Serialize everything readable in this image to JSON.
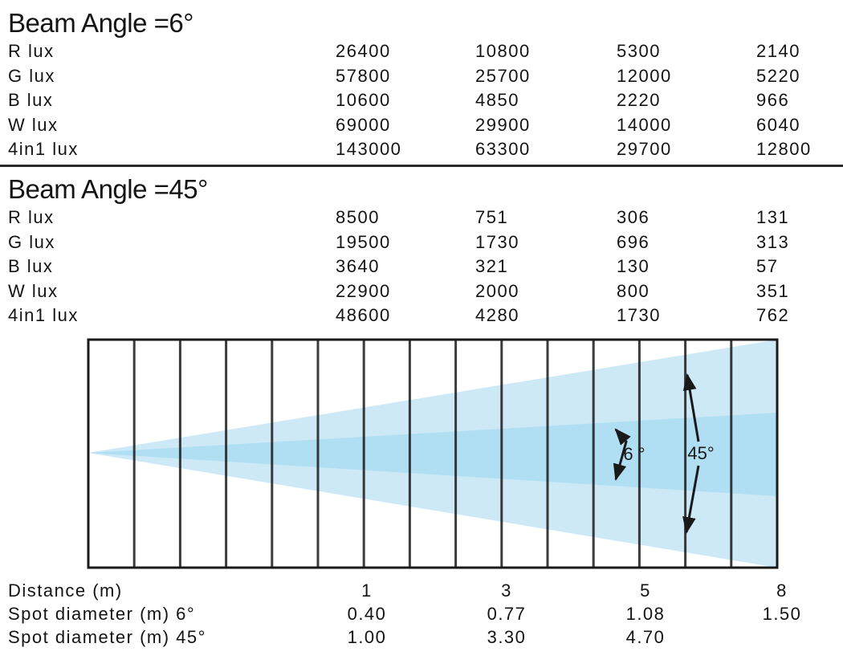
{
  "beam6": {
    "title": "Beam Angle =6°",
    "rows": [
      {
        "label": "R lux",
        "values": [
          "26400",
          "10800",
          "5300",
          "2140"
        ]
      },
      {
        "label": "G lux",
        "values": [
          "57800",
          "25700",
          "12000",
          "5220"
        ]
      },
      {
        "label": "B lux",
        "values": [
          "10600",
          "4850",
          "2220",
          "966"
        ]
      },
      {
        "label": "W lux",
        "values": [
          "69000",
          "29900",
          "14000",
          "6040"
        ]
      },
      {
        "label": "4in1 lux",
        "values": [
          "143000",
          "63300",
          "29700",
          "12800"
        ]
      }
    ]
  },
  "beam45": {
    "title": "Beam Angle =45°",
    "rows": [
      {
        "label": "R lux",
        "values": [
          "8500",
          "751",
          "306",
          "131"
        ]
      },
      {
        "label": "G lux",
        "values": [
          "19500",
          "1730",
          "696",
          "313"
        ]
      },
      {
        "label": "B lux",
        "values": [
          "3640",
          "321",
          "130",
          "57"
        ]
      },
      {
        "label": "W lux",
        "values": [
          "22900",
          "2000",
          "800",
          "351"
        ]
      },
      {
        "label": "4in1 lux",
        "values": [
          "48600",
          "4280",
          "1730",
          "762"
        ]
      }
    ]
  },
  "diagram": {
    "narrow_angle_label": "6 °",
    "wide_angle_label": "45°",
    "colors": {
      "wide_beam": "#cde9f6",
      "narrow_beam": "#b0def3",
      "grid": "#1a1a1a",
      "arrow": "#1a1a1a"
    }
  },
  "bottom": {
    "rows": [
      {
        "label": "Distance (m)",
        "values": [
          "1",
          "3",
          "5",
          "8"
        ]
      },
      {
        "label": "Spot diameter (m) 6°",
        "values": [
          "0.40",
          "0.77",
          "1.08",
          "1.50"
        ]
      },
      {
        "label": "Spot diameter (m) 45°",
        "values": [
          "1.00",
          "3.30",
          "4.70",
          ""
        ]
      }
    ]
  }
}
